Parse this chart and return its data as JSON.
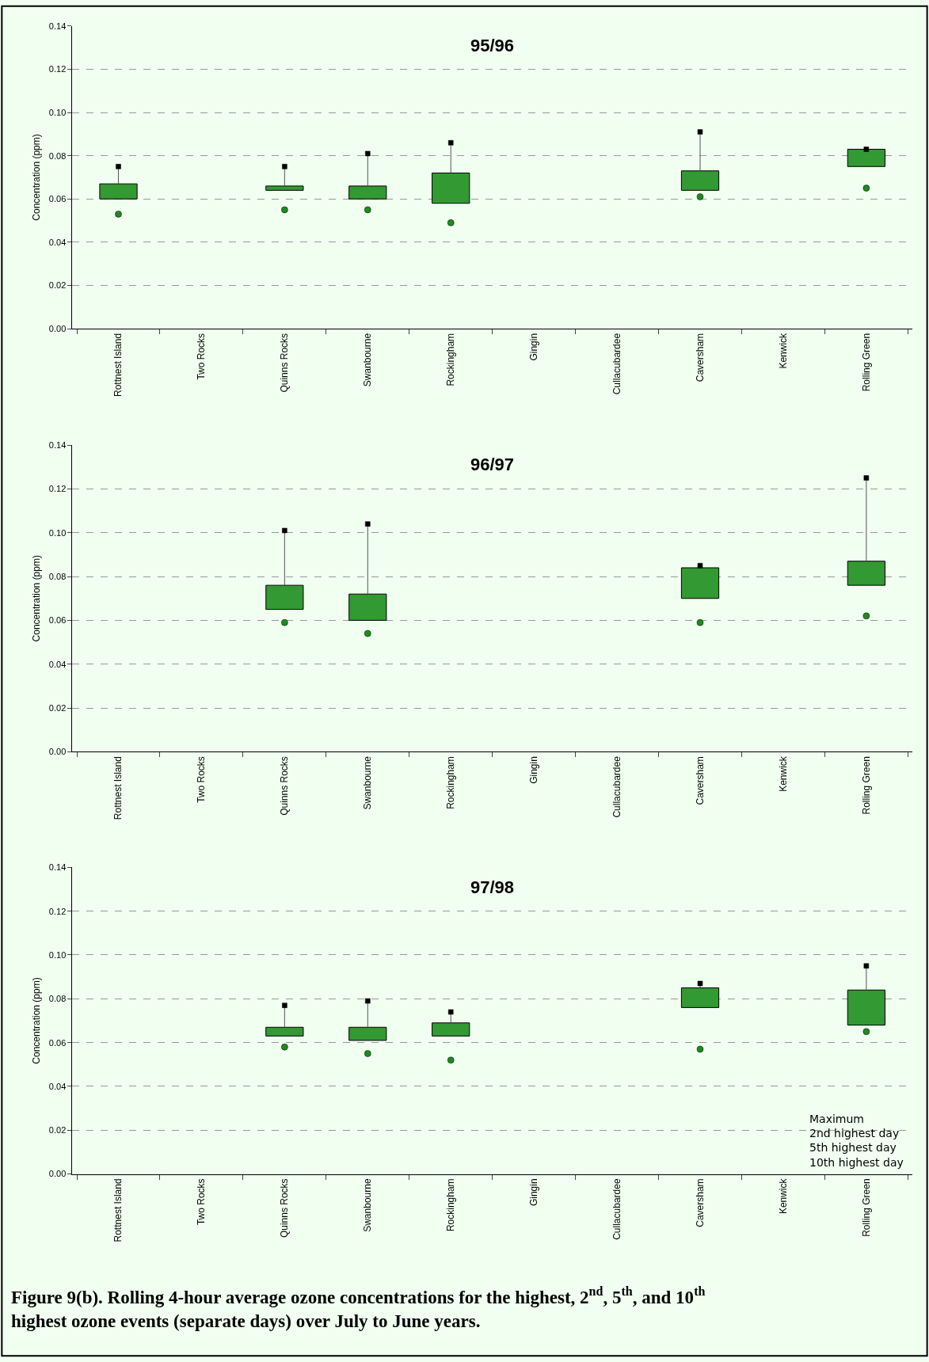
{
  "chart_data": [
    {
      "type": "bar",
      "title": "95/96",
      "ylabel": "Concentration (ppm)",
      "categories": [
        "Rottnest Island",
        "Two Rocks",
        "Quinns Rocks",
        "Swanbourne",
        "Rockingham",
        "Gingin",
        "Cullacubardee",
        "Caversham",
        "Kenwick",
        "Rolling Green"
      ],
      "series": [
        {
          "color": "#339933",
          "base": [
            0.06,
            null,
            0.064,
            0.06,
            0.058,
            null,
            null,
            0.064,
            null,
            0.075
          ],
          "values": [
            0.007,
            null,
            0.002,
            0.006,
            0.014,
            null,
            null,
            0.009,
            null,
            0.008
          ],
          "errors": [
            [
              0.067,
              0.075
            ],
            null,
            [
              0.066,
              0.075
            ],
            [
              0.066,
              0.081
            ],
            [
              0.072,
              0.086
            ],
            null,
            null,
            [
              0.073,
              0.091
            ],
            null,
            [
              0.083,
              0.083
            ]
          ]
        },
        {
          "type": "scatter",
          "marker": "square",
          "color": "#000000",
          "values": [
            0.075,
            null,
            0.075,
            0.081,
            0.086,
            null,
            null,
            0.091,
            null,
            0.083
          ]
        },
        {
          "type": "scatter",
          "marker": "circle",
          "color": "#1e8c1e",
          "values": [
            0.053,
            null,
            0.055,
            0.055,
            0.049,
            null,
            null,
            0.061,
            null,
            0.065
          ]
        }
      ],
      "ylim": [
        0,
        0.14
      ],
      "yticks": [
        {
          "value": 0,
          "label": "0.00"
        },
        {
          "value": 0.02,
          "label": "0.02"
        },
        {
          "value": 0.04,
          "label": "0.04"
        },
        {
          "value": 0.06,
          "label": "0.06"
        },
        {
          "value": 0.08,
          "label": "0.08"
        },
        {
          "value": 0.1,
          "label": "0.10"
        },
        {
          "value": 0.12,
          "label": "0.12"
        },
        {
          "value": 0.14,
          "label": "0.14"
        }
      ],
      "grid": "y"
    },
    {
      "type": "bar",
      "title": "96/97",
      "ylabel": "Concentration (ppm)",
      "categories": [
        "Rottnest Island",
        "Two Rocks",
        "Quinns Rocks",
        "Swanbourne",
        "Rockingham",
        "Gingin",
        "Cullacubardee",
        "Caversham",
        "Kenwick",
        "Rolling Green"
      ],
      "series": [
        {
          "color": "#339933",
          "base": [
            null,
            null,
            0.065,
            0.06,
            null,
            null,
            null,
            0.07,
            null,
            0.076
          ],
          "values": [
            null,
            null,
            0.011,
            0.012,
            null,
            null,
            null,
            0.014,
            null,
            0.011
          ],
          "errors": [
            null,
            null,
            [
              0.076,
              0.101
            ],
            [
              0.072,
              0.104
            ],
            null,
            null,
            null,
            [
              0.084,
              0.085
            ],
            null,
            [
              0.087,
              0.125
            ]
          ]
        },
        {
          "type": "scatter",
          "marker": "square",
          "color": "#000000",
          "values": [
            null,
            null,
            0.101,
            0.104,
            null,
            null,
            null,
            0.085,
            null,
            0.125
          ]
        },
        {
          "type": "scatter",
          "marker": "circle",
          "color": "#1e8c1e",
          "values": [
            null,
            null,
            0.059,
            0.054,
            null,
            null,
            null,
            0.059,
            null,
            0.062
          ]
        }
      ],
      "ylim": [
        0,
        0.14
      ],
      "yticks": [
        {
          "value": 0,
          "label": "0.00"
        },
        {
          "value": 0.02,
          "label": "0.02"
        },
        {
          "value": 0.04,
          "label": "0.04"
        },
        {
          "value": 0.06,
          "label": "0.06"
        },
        {
          "value": 0.08,
          "label": "0.08"
        },
        {
          "value": 0.1,
          "label": "0.10"
        },
        {
          "value": 0.12,
          "label": "0.12"
        },
        {
          "value": 0.14,
          "label": "0.14"
        }
      ],
      "grid": "y"
    },
    {
      "type": "bar",
      "title": "97/98",
      "ylabel": "Concentration (ppm)",
      "categories": [
        "Rottnest Island",
        "Two Rocks",
        "Quinns Rocks",
        "Swanbourne",
        "Rockingham",
        "Gingin",
        "Cullacubardee",
        "Caversham",
        "Kenwick",
        "Rolling Green"
      ],
      "series": [
        {
          "color": "#339933",
          "base": [
            null,
            null,
            0.063,
            0.061,
            0.063,
            null,
            null,
            0.076,
            null,
            0.068
          ],
          "values": [
            null,
            null,
            0.004,
            0.006,
            0.006,
            null,
            null,
            0.009,
            null,
            0.016
          ],
          "errors": [
            null,
            null,
            [
              0.067,
              0.077
            ],
            [
              0.067,
              0.079
            ],
            [
              0.069,
              0.074
            ],
            null,
            null,
            [
              0.085,
              0.087
            ],
            null,
            [
              0.084,
              0.095
            ]
          ]
        },
        {
          "type": "scatter",
          "marker": "square",
          "color": "#000000",
          "values": [
            null,
            null,
            0.077,
            0.079,
            0.074,
            null,
            null,
            0.087,
            null,
            0.095
          ]
        },
        {
          "type": "scatter",
          "marker": "circle",
          "color": "#1e8c1e",
          "values": [
            null,
            null,
            0.058,
            0.055,
            0.052,
            null,
            null,
            0.057,
            null,
            0.065
          ]
        }
      ],
      "ylim": [
        0,
        0.14
      ],
      "yticks": [
        {
          "value": 0,
          "label": "0.00"
        },
        {
          "value": 0.02,
          "label": "0.02"
        },
        {
          "value": 0.04,
          "label": "0.04"
        },
        {
          "value": 0.06,
          "label": "0.06"
        },
        {
          "value": 0.08,
          "label": "0.08"
        },
        {
          "value": 0.1,
          "label": "0.10"
        },
        {
          "value": 0.12,
          "label": "0.12"
        },
        {
          "value": 0.14,
          "label": "0.14"
        }
      ],
      "grid": "y",
      "annotations": [
        "Maximum\n2nd highest day\n5th highest day\n10th highest day",
        "Figure 9(b). Rolling 4-hour average ozone concentrations for the highest, 2$^{nd}$, 5$^{th}$, and 10$^{th}$ highest ozone events (separate days) over July to June years."
      ]
    }
  ]
}
